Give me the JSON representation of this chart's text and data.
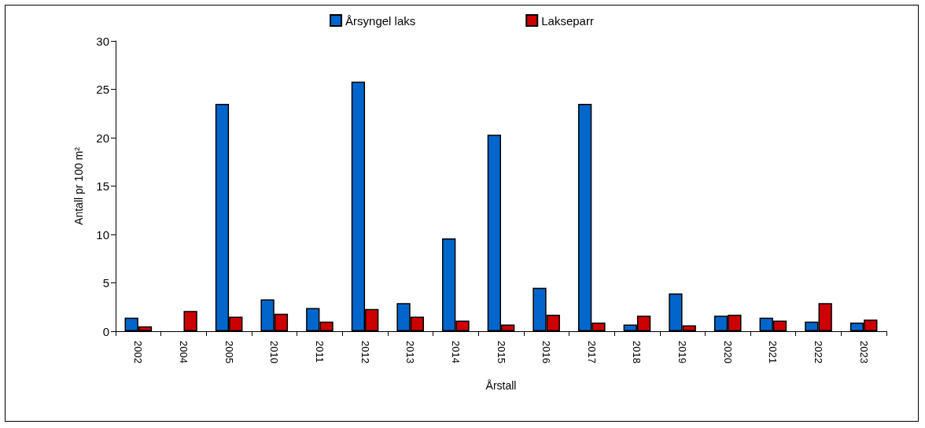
{
  "chart_data": {
    "type": "bar",
    "xlabel": "Årstall",
    "ylabel": "Antall pr 100 m²",
    "categories": [
      "2002",
      "2004",
      "2005",
      "2010",
      "2011",
      "2012",
      "2013",
      "2014",
      "2015",
      "2016",
      "2017",
      "2018",
      "2019",
      "2020",
      "2021",
      "2022",
      "2023"
    ],
    "series": [
      {
        "name": "Årsyngel laks",
        "color": "#0066cc",
        "values": [
          1.4,
          null,
          23.5,
          3.3,
          2.4,
          25.8,
          2.9,
          9.6,
          20.3,
          4.5,
          23.5,
          0.7,
          3.9,
          1.6,
          1.4,
          1.0,
          0.9
        ]
      },
      {
        "name": "Lakseparr",
        "color": "#cc0000",
        "values": [
          0.5,
          2.1,
          1.5,
          1.8,
          1.0,
          2.3,
          1.5,
          1.1,
          0.7,
          1.7,
          0.9,
          1.6,
          0.6,
          1.7,
          1.1,
          2.9,
          1.2
        ]
      }
    ],
    "ylim": [
      0,
      30
    ],
    "yticks": [
      0,
      5,
      10,
      15,
      20,
      25,
      30
    ],
    "grid": false,
    "legend": "top"
  }
}
